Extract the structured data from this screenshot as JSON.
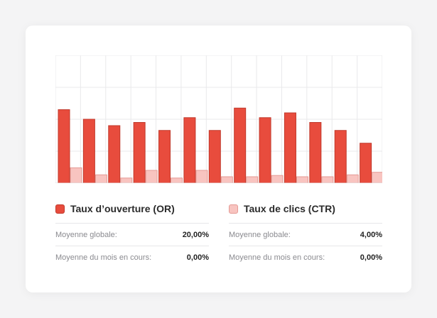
{
  "chart_data": {
    "type": "bar",
    "categories": [
      "",
      "",
      "",
      "",
      "",
      "",
      "",
      "",
      "",
      "",
      "",
      "",
      ""
    ],
    "series": [
      {
        "name": "Taux d’ouverture (OR)",
        "values": [
          23,
          20,
          18,
          19,
          16.5,
          20.5,
          16.5,
          23.5,
          20.5,
          22,
          19,
          16.5,
          12.5
        ]
      },
      {
        "name": "Taux de clics (CTR)",
        "values": [
          4.8,
          2.6,
          1.6,
          4,
          1.6,
          4,
          2,
          2,
          2.4,
          2,
          2,
          2.6,
          3.4
        ]
      }
    ],
    "ylim": [
      0,
      40
    ],
    "grid": true,
    "colors": {
      "or_fill": "#e84c3d",
      "or_border": "#c0392b",
      "ctr_fill": "#f8c4c0",
      "ctr_border": "#e59a94"
    }
  },
  "legend": {
    "or": {
      "title": "Taux d’ouverture (OR)",
      "global_label": "Moyenne globale:",
      "global_value": "20,00%",
      "month_label": "Moyenne du mois en cours:",
      "month_value": "0,00%"
    },
    "ctr": {
      "title": "Taux de clics (CTR)",
      "global_label": "Moyenne globale:",
      "global_value": "4,00%",
      "month_label": "Moyenne du mois en cours:",
      "month_value": "0,00%"
    }
  }
}
